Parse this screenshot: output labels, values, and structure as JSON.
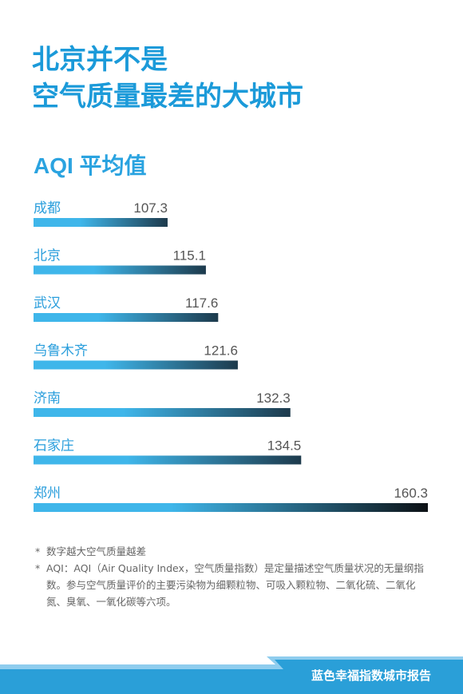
{
  "header": {
    "title_line1": "北京并不是",
    "title_line2": "空气质量最差的大城市"
  },
  "chart_data": {
    "type": "bar",
    "orientation": "horizontal",
    "title": "AQI 平均值",
    "categories": [
      "成都",
      "北京",
      "武汉",
      "乌鲁木齐",
      "济南",
      "石家庄",
      "郑州"
    ],
    "values": [
      107.3,
      115.1,
      117.6,
      121.6,
      132.3,
      134.5,
      160.3
    ],
    "value_labels": [
      "107.3",
      "115.1",
      "117.6",
      "121.6",
      "132.3",
      "134.5",
      "160.3"
    ],
    "xlim": [
      80,
      160.3
    ],
    "grid": false,
    "legend": "none",
    "colors": {
      "bar_start": "#3fb6ea",
      "bar_end": "#1d3a4c",
      "bar_end_max": "#0d1115"
    }
  },
  "notes": [
    {
      "star": "*",
      "text": "数字越大空气质量越差"
    },
    {
      "star": "*",
      "text": "AQI：AQI（Air Quality Index，空气质量指数）是定量描述空气质量状况的无量纲指数。参与空气质量评价的主要污染物为细颗粒物、可吸入颗粒物、二氧化硫、二氧化氮、臭氧、一氧化碳等六项。"
    }
  ],
  "footer": {
    "text": "蓝色幸福指数城市报告",
    "colors": {
      "band": "#2a9fd8",
      "stripe": "#8fcdee"
    }
  }
}
